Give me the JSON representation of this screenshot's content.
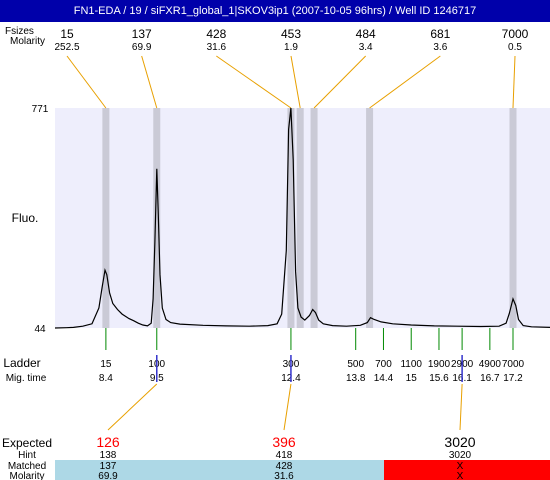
{
  "title": "FN1-EDA / 19 / siFXR1_global_1|SKOV3ip1 (2007-10-05 96hrs) / Well ID 1246717",
  "top_row_labels": [
    "Fsizes",
    "Molarity"
  ],
  "y_axis_label": "Fluo.",
  "ladder_label": "Ladder",
  "migtime_label": "Mig. time",
  "bottom_labels": {
    "expected": "Expected",
    "hint": "Hint",
    "matched": "Matched",
    "molarity": "Molarity"
  },
  "colors": {
    "title_bg": "#0000aa",
    "plot_bg": "#eeeefc",
    "band": "#cacad6",
    "peak_line": "#e8a000",
    "ladder_tick": "#008800",
    "expected_red": "#ff0000",
    "matched_ok_bg": "#add8e6",
    "matched_fail_bg": "#ff0000"
  },
  "chart_data": {
    "type": "line",
    "y_axis": {
      "min": 44,
      "max": 771,
      "ticks": [
        44,
        771
      ]
    },
    "x_axis": {
      "unit": "migration time (s)",
      "min": 7.3,
      "max": 18.0
    },
    "peaks": [
      {
        "size": "15",
        "molarity": "252.5",
        "mig_time": 8.4
      },
      {
        "size": "137",
        "molarity": "69.9",
        "mig_time": 9.5
      },
      {
        "size": "428",
        "molarity": "31.6",
        "mig_time": 12.4
      },
      {
        "size": "453",
        "molarity": "1.9",
        "mig_time": 12.6
      },
      {
        "size": "484",
        "molarity": "3.4",
        "mig_time": 12.9
      },
      {
        "size": "681",
        "molarity": "3.6",
        "mig_time": 14.1
      },
      {
        "size": "7000",
        "molarity": "0.5",
        "mig_time": 17.2
      }
    ],
    "ladder": [
      {
        "size": "15",
        "mig_time": 8.4
      },
      {
        "size": "100",
        "mig_time": 9.5
      },
      {
        "size": "300",
        "mig_time": 12.4
      },
      {
        "size": "500",
        "mig_time": 13.8
      },
      {
        "size": "700",
        "mig_time": 14.4
      },
      {
        "size": "1100",
        "mig_time": 15
      },
      {
        "size": "1900",
        "mig_time": 15.6
      },
      {
        "size": "2900",
        "mig_time": 16.1
      },
      {
        "size": "4900",
        "mig_time": 16.7
      },
      {
        "size": "7000",
        "mig_time": 17.2
      }
    ],
    "expected": [
      {
        "size": "126",
        "hint": "138",
        "matched": "137",
        "molarity": "69.9",
        "mig_time": 9.5,
        "found": true
      },
      {
        "size": "396",
        "hint": "418",
        "matched": "428",
        "molarity": "31.6",
        "mig_time": 12.4,
        "found": true
      },
      {
        "size": "3020",
        "hint": "3020",
        "matched": "X",
        "molarity": "X",
        "mig_time": 16.1,
        "found": false
      }
    ],
    "trace": [
      [
        7.3,
        44
      ],
      [
        7.55,
        45
      ],
      [
        7.7,
        46
      ],
      [
        7.9,
        50
      ],
      [
        8.1,
        58
      ],
      [
        8.25,
        110
      ],
      [
        8.32,
        180
      ],
      [
        8.38,
        235
      ],
      [
        8.42,
        220
      ],
      [
        8.48,
        160
      ],
      [
        8.55,
        125
      ],
      [
        8.65,
        105
      ],
      [
        8.75,
        90
      ],
      [
        8.9,
        75
      ],
      [
        9.0,
        68
      ],
      [
        9.1,
        60
      ],
      [
        9.2,
        54
      ],
      [
        9.3,
        51
      ],
      [
        9.38,
        60
      ],
      [
        9.42,
        140
      ],
      [
        9.46,
        330
      ],
      [
        9.5,
        570
      ],
      [
        9.53,
        430
      ],
      [
        9.57,
        220
      ],
      [
        9.62,
        110
      ],
      [
        9.7,
        72
      ],
      [
        9.8,
        62
      ],
      [
        10.0,
        57
      ],
      [
        10.5,
        53
      ],
      [
        11.0,
        51
      ],
      [
        11.5,
        50
      ],
      [
        11.9,
        52
      ],
      [
        12.1,
        58
      ],
      [
        12.2,
        90
      ],
      [
        12.3,
        300
      ],
      [
        12.35,
        700
      ],
      [
        12.4,
        771
      ],
      [
        12.45,
        600
      ],
      [
        12.5,
        230
      ],
      [
        12.55,
        110
      ],
      [
        12.62,
        80
      ],
      [
        12.7,
        70
      ],
      [
        12.8,
        85
      ],
      [
        12.87,
        105
      ],
      [
        12.93,
        95
      ],
      [
        13.0,
        70
      ],
      [
        13.1,
        58
      ],
      [
        13.3,
        52
      ],
      [
        13.6,
        50
      ],
      [
        13.9,
        53
      ],
      [
        14.05,
        62
      ],
      [
        14.12,
        78
      ],
      [
        14.2,
        72
      ],
      [
        14.35,
        64
      ],
      [
        14.6,
        58
      ],
      [
        15.0,
        54
      ],
      [
        15.5,
        51
      ],
      [
        16.0,
        50
      ],
      [
        16.5,
        49
      ],
      [
        16.9,
        50
      ],
      [
        17.05,
        60
      ],
      [
        17.12,
        92
      ],
      [
        17.2,
        140
      ],
      [
        17.26,
        118
      ],
      [
        17.32,
        72
      ],
      [
        17.42,
        52
      ],
      [
        17.6,
        48
      ],
      [
        18.0,
        46
      ]
    ]
  }
}
